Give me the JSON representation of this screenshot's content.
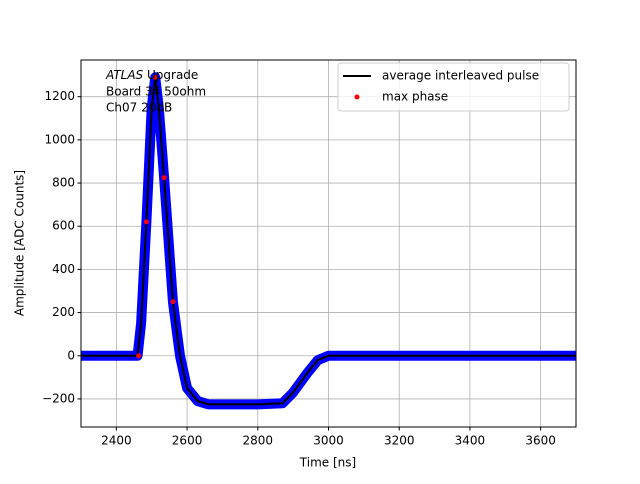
{
  "chart_data": {
    "type": "line",
    "annotation_italic": "ATLAS",
    "annotation_lines": [
      " Upgrade",
      " Board 34 50ohm",
      " Ch07 20dB"
    ],
    "xlabel": "Time [ns]",
    "ylabel": "Amplitude [ADC Counts]",
    "xlim": [
      2300,
      3700
    ],
    "ylim": [
      -330,
      1370
    ],
    "xticks": [
      2400,
      2600,
      2800,
      3000,
      3200,
      3400,
      3600
    ],
    "yticks": [
      {
        "value": -200,
        "label": "−200"
      },
      0,
      200,
      400,
      600,
      800,
      1000,
      1200
    ],
    "grid": true,
    "legend": "upper right",
    "series": [
      {
        "color": "#0000ff",
        "style": "band",
        "x": [
          2300,
          2460,
          2470,
          2485,
          2500,
          2510,
          2520,
          2535,
          2560,
          2580,
          2600,
          2630,
          2660,
          2800,
          2870,
          2900,
          2940,
          2970,
          3000,
          3700
        ],
        "values": [
          0,
          0,
          150,
          620,
          1150,
          1290,
          1150,
          825,
          250,
          0,
          -150,
          -210,
          -225,
          -225,
          -220,
          -170,
          -80,
          -20,
          0,
          0
        ]
      },
      {
        "name": "average interleaved pulse",
        "color": "#000000",
        "style": "line",
        "x": [
          2300,
          2460,
          2470,
          2485,
          2500,
          2510,
          2520,
          2535,
          2560,
          2580,
          2600,
          2630,
          2660,
          2800,
          2870,
          2900,
          2940,
          2970,
          3000,
          3700
        ],
        "values": [
          0,
          0,
          150,
          620,
          1150,
          1290,
          1150,
          825,
          250,
          0,
          -150,
          -210,
          -225,
          -225,
          -220,
          -170,
          -80,
          -20,
          0,
          0
        ]
      },
      {
        "name": "max phase",
        "color": "#ff0000",
        "style": "marker",
        "x": [
          2463,
          2485,
          2510,
          2535,
          2560
        ],
        "values": [
          0,
          620,
          1290,
          825,
          250
        ]
      }
    ]
  }
}
